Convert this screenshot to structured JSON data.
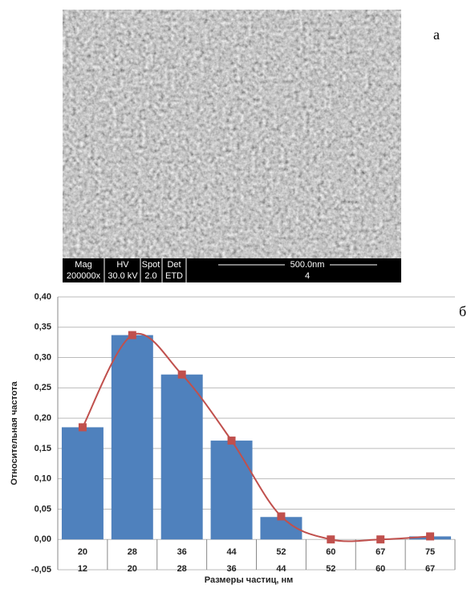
{
  "panel_labels": [
    "а",
    "б"
  ],
  "sem_image": {
    "header": [
      "Mag",
      "HV",
      "Spot",
      "Det",
      "500.0nm"
    ],
    "values": [
      "200000x",
      "30.0 kV",
      "2.0",
      "ETD",
      "4"
    ]
  },
  "chart_data": {
    "type": "bar",
    "y_label": "Относительная частота",
    "x_label": "Размеры частиц, нм",
    "categories": [
      "20",
      "28",
      "36",
      "44",
      "52",
      "60",
      "67",
      "75"
    ],
    "categories_lower": [
      "12",
      "20",
      "28",
      "36",
      "44",
      "52",
      "60",
      "67"
    ],
    "series": [
      {
        "type": "bar",
        "color": "#4f81bd",
        "values": [
          0.185,
          0.337,
          0.272,
          0.163,
          0.037,
          0.0,
          0.0,
          0.005
        ]
      },
      {
        "type": "line",
        "color": "#c0504d",
        "values": [
          0.185,
          0.337,
          0.272,
          0.163,
          0.038,
          0.0,
          0.0,
          0.005
        ]
      }
    ],
    "ylim": [
      -0.05,
      0.4
    ],
    "yticks": [
      {
        "value": -0.05,
        "label": "-0,05"
      },
      {
        "value": 0,
        "label": "0,00"
      },
      {
        "value": 0.05,
        "label": "0,05"
      },
      {
        "value": 0.1,
        "label": "0,10"
      },
      {
        "value": 0.15,
        "label": "0,15"
      },
      {
        "value": 0.2,
        "label": "0,20"
      },
      {
        "value": 0.25,
        "label": "0,25"
      },
      {
        "value": 0.3,
        "label": "0,30"
      },
      {
        "value": 0.35,
        "label": "0,35"
      },
      {
        "value": 0.4,
        "label": "0,40"
      }
    ],
    "grid": true
  }
}
